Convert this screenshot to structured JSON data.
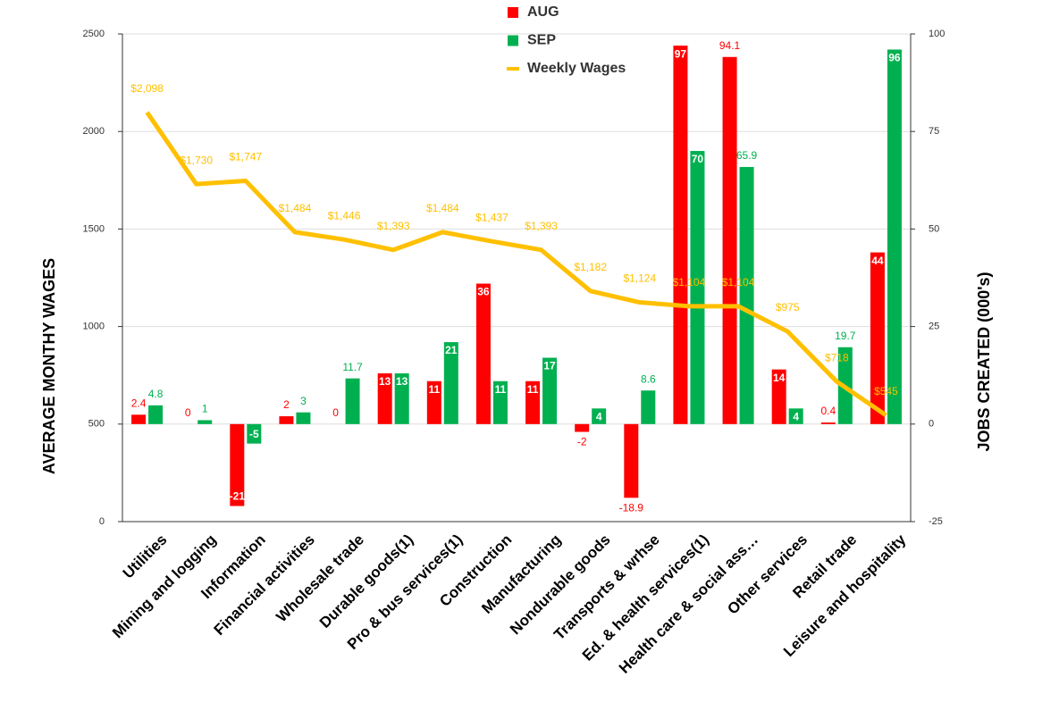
{
  "chart_data": {
    "type": "bar",
    "y_label": "AVERAGE MONTHY WAGES",
    "y2_label": "JOBS CREATED (000's)",
    "categories": [
      "Utilities",
      "Mining and logging",
      "Information",
      "Financial activities",
      "Wholesale trade",
      "Durable goods(1)",
      "Pro & bus services(1)",
      "Construction",
      "Manufacturing",
      "Nondurable goods",
      "Transports & wrhse",
      "Ed. & health services(1)",
      "Health care & social ass…",
      "Other services",
      "Retail trade",
      "Leisure and hospitality"
    ],
    "ylim": [
      0,
      2500
    ],
    "yticks": [
      0,
      500,
      1000,
      1500,
      2000,
      2500
    ],
    "y2lim": [
      -25,
      100
    ],
    "y2ticks": [
      -25,
      0,
      25,
      50,
      75,
      100
    ],
    "grid": true,
    "series": [
      {
        "name": "AUG",
        "color": "#ff0000",
        "axis": "y2",
        "values": [
          2.4,
          0,
          -21,
          2,
          0,
          13,
          11,
          36,
          11,
          -2,
          -18.9,
          97,
          94.1,
          14,
          0.4,
          44
        ]
      },
      {
        "name": "SEP",
        "color": "#00b050",
        "axis": "y2",
        "values": [
          4.8,
          1,
          -5,
          3,
          11.7,
          13,
          21,
          11,
          17,
          4,
          8.6,
          70,
          65.9,
          4,
          19.7,
          96
        ]
      },
      {
        "name": "Weekly Wages",
        "type": "line",
        "color": "#ffc000",
        "values": [
          2098,
          1730,
          1747,
          1484,
          1446,
          1393,
          1484,
          1437,
          1393,
          1182,
          1124,
          1104,
          1104,
          975,
          718,
          545
        ],
        "value_labels": [
          "$2,098",
          "$1,730",
          "$1,747",
          "$1,484",
          "$1,446",
          "$1,393",
          "$1,484",
          "$1,437",
          "$1,393",
          "$1,182",
          "$1,124",
          "$1,104",
          "$1,104",
          "$975",
          "$718",
          "$545"
        ]
      }
    ]
  }
}
